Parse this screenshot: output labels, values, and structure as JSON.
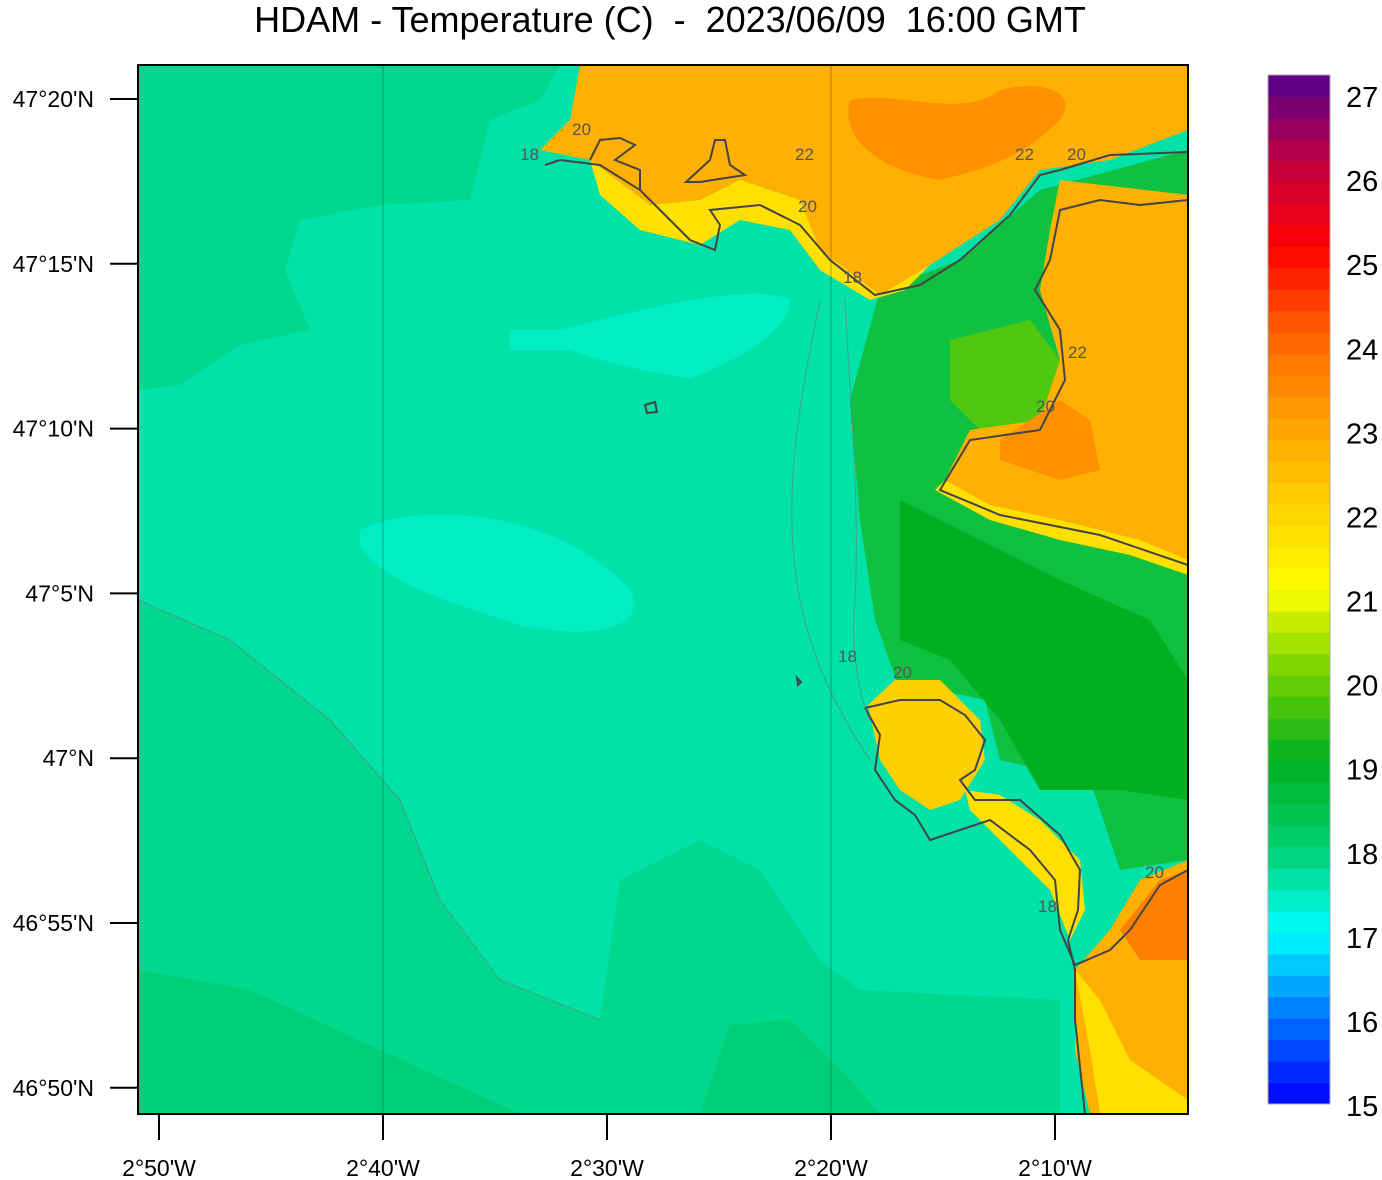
{
  "title": "HDAM - Temperature (C)  -  2023/06/09  16:00 GMT",
  "map": {
    "lat_ticks": [
      "47°20'N",
      "47°15'N",
      "47°10'N",
      "47°5'N",
      "47°N",
      "46°55'N",
      "46°50'N"
    ],
    "lon_ticks": [
      "2°50'W",
      "2°40'W",
      "2°30'W",
      "2°20'W",
      "2°10'W"
    ],
    "contour_labels": [
      "20",
      "18",
      "22",
      "20",
      "18",
      "22",
      "20",
      "22",
      "20",
      "18",
      "20",
      "20",
      "18"
    ],
    "colors": {
      "sea_west": "#00d88e",
      "sea_mid": "#00e2a8",
      "sea_cool": "#00eec4",
      "land_green": "#10c040",
      "land_orange": "#ffa000",
      "land_yellow": "#ffd800",
      "coastline": "#444444"
    }
  },
  "colorbar": {
    "min": 15,
    "max": 27,
    "step": 0.25,
    "labels": [
      "27",
      "26",
      "25",
      "24",
      "23",
      "22",
      "21",
      "20",
      "19",
      "18",
      "17",
      "16",
      "15"
    ],
    "stops": [
      {
        "v": 15,
        "c": "#0000ff"
      },
      {
        "v": 16,
        "c": "#0070ff"
      },
      {
        "v": 17,
        "c": "#00ffff"
      },
      {
        "v": 17.5,
        "c": "#00e8b8"
      },
      {
        "v": 18,
        "c": "#00d070"
      },
      {
        "v": 19,
        "c": "#00b020"
      },
      {
        "v": 20,
        "c": "#70d000"
      },
      {
        "v": 21,
        "c": "#ffff00"
      },
      {
        "v": 22,
        "c": "#ffd000"
      },
      {
        "v": 23,
        "c": "#ffa000"
      },
      {
        "v": 24,
        "c": "#ff6000"
      },
      {
        "v": 25,
        "c": "#ff0000"
      },
      {
        "v": 26,
        "c": "#c00040"
      },
      {
        "v": 27,
        "c": "#500090"
      }
    ]
  }
}
